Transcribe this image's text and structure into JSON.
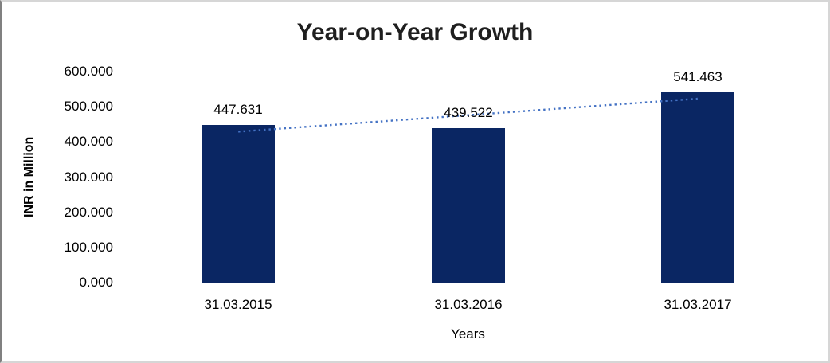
{
  "frame": {
    "border_color": "#D6D6D6",
    "border_left_color": "#808080",
    "background": "#FFFFFF"
  },
  "chart_data": {
    "type": "bar",
    "title": "Year-on-Year Growth",
    "categories": [
      "31.03.2015",
      "31.03.2016",
      "31.03.2017"
    ],
    "values": [
      447.631,
      439.522,
      541.463
    ],
    "data_labels": [
      "447.631",
      "439.522",
      "541.463"
    ],
    "xlabel": "Years",
    "ylabel": "INR in Million",
    "ylim": [
      0,
      600
    ],
    "ytick_step": 100,
    "ytick_labels": [
      "0.000",
      "100.000",
      "200.000",
      "300.000",
      "400.000",
      "500.000",
      "600.000"
    ],
    "grid": true,
    "legend": false,
    "colors": {
      "bar": "#0A2663",
      "gridline": "#D9D9D9",
      "title_text": "#1F1F1F",
      "label_text": "#000000"
    },
    "trendline": {
      "type": "linear",
      "style": "dotted",
      "color": "#4472C4"
    }
  }
}
